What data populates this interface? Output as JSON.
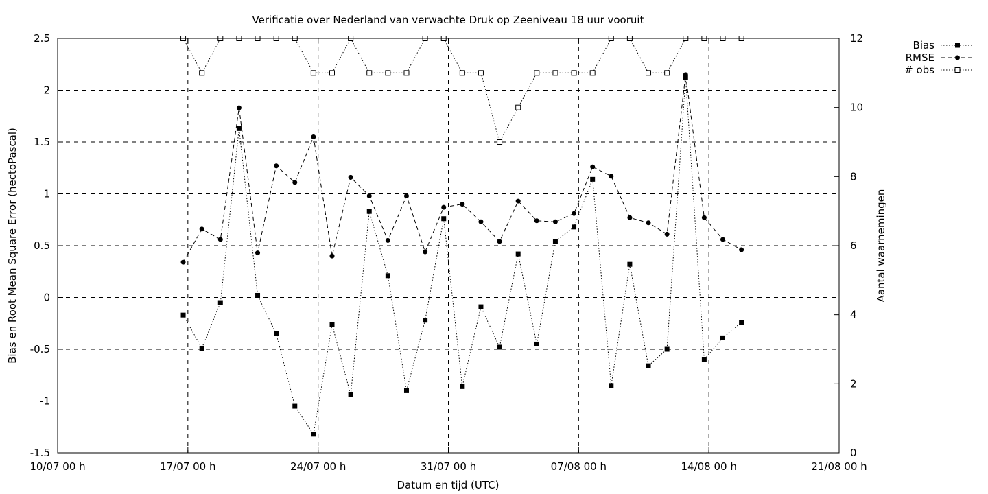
{
  "chart_data": {
    "type": "line",
    "title": "Verificatie over Nederland van verwachte Druk op Zeeniveau 18 uur vooruit",
    "xlabel": "Datum en tijd (UTC)",
    "ylabel": "Bias en Root Mean Square Error (hectoPascal)",
    "y2label": "Aantal waarnemingen",
    "x_tick_labels": [
      "10/07 00 h",
      "17/07 00 h",
      "24/07 00 h",
      "31/07 00 h",
      "07/08 00 h",
      "14/08 00 h",
      "21/08 00 h"
    ],
    "y_tick_labels": [
      "2.5",
      "2",
      "1.5",
      "1",
      "0.5",
      "0",
      "-0.5",
      "-1",
      "-1.5"
    ],
    "y2_tick_labels": [
      "12",
      "10",
      "8",
      "6",
      "4",
      "2",
      "0"
    ],
    "xlim_days_from_10_07": [
      0,
      42
    ],
    "ylim": [
      -1.5,
      2.5
    ],
    "y2lim": [
      0,
      12
    ],
    "grid": "dashed at labelled ticks",
    "legend_position": "top-right outside",
    "x_dates": [
      "16/07 18 h",
      "17/07 18 h",
      "18/07 18 h",
      "19/07 18 h",
      "20/07 18 h",
      "21/07 18 h",
      "22/07 18 h",
      "23/07 18 h",
      "24/07 18 h",
      "25/07 18 h",
      "26/07 18 h",
      "27/07 18 h",
      "28/07 18 h",
      "29/07 18 h",
      "30/07 18 h",
      "31/07 18 h",
      "01/08 18 h",
      "02/08 18 h",
      "03/08 18 h",
      "04/08 18 h",
      "05/08 18 h",
      "06/08 18 h",
      "07/08 18 h",
      "08/08 18 h",
      "09/08 18 h",
      "10/08 18 h",
      "11/08 18 h",
      "12/08 18 h",
      "13/08 18 h",
      "14/08 18 h",
      "15/08 18 h"
    ],
    "series": [
      {
        "name": "Bias",
        "axis": "left",
        "style": "dotted line, filled square markers",
        "values": [
          -0.17,
          -0.49,
          -0.05,
          1.63,
          0.02,
          -0.35,
          -1.05,
          -1.32,
          -0.26,
          -0.94,
          0.83,
          0.21,
          -0.9,
          -0.22,
          0.76,
          -0.86,
          -0.09,
          -0.48,
          0.42,
          -0.45,
          0.54,
          0.68,
          1.14,
          -0.85,
          0.32,
          -0.66,
          -0.5,
          2.12,
          -0.6,
          -0.39,
          -0.24
        ]
      },
      {
        "name": "RMSE",
        "axis": "left",
        "style": "dashed line, filled circle markers",
        "values": [
          0.34,
          0.66,
          0.56,
          1.83,
          0.43,
          1.27,
          1.11,
          1.55,
          0.4,
          1.16,
          0.98,
          0.55,
          0.98,
          0.44,
          0.87,
          0.9,
          0.73,
          0.54,
          0.93,
          0.74,
          0.73,
          0.81,
          1.26,
          1.17,
          0.77,
          0.72,
          0.61,
          2.15,
          0.77,
          0.56,
          0.46
        ]
      },
      {
        "name": "# obs",
        "axis": "right",
        "style": "dotted line, open square markers",
        "values": [
          12,
          11,
          12,
          12,
          12,
          12,
          12,
          11,
          11,
          12,
          11,
          11,
          11,
          12,
          12,
          11,
          11,
          9,
          10,
          11,
          11,
          11,
          11,
          12,
          12,
          11,
          11,
          12,
          12,
          12,
          12
        ]
      }
    ],
    "colors": {
      "line": "#000000",
      "background": "#ffffff"
    }
  }
}
